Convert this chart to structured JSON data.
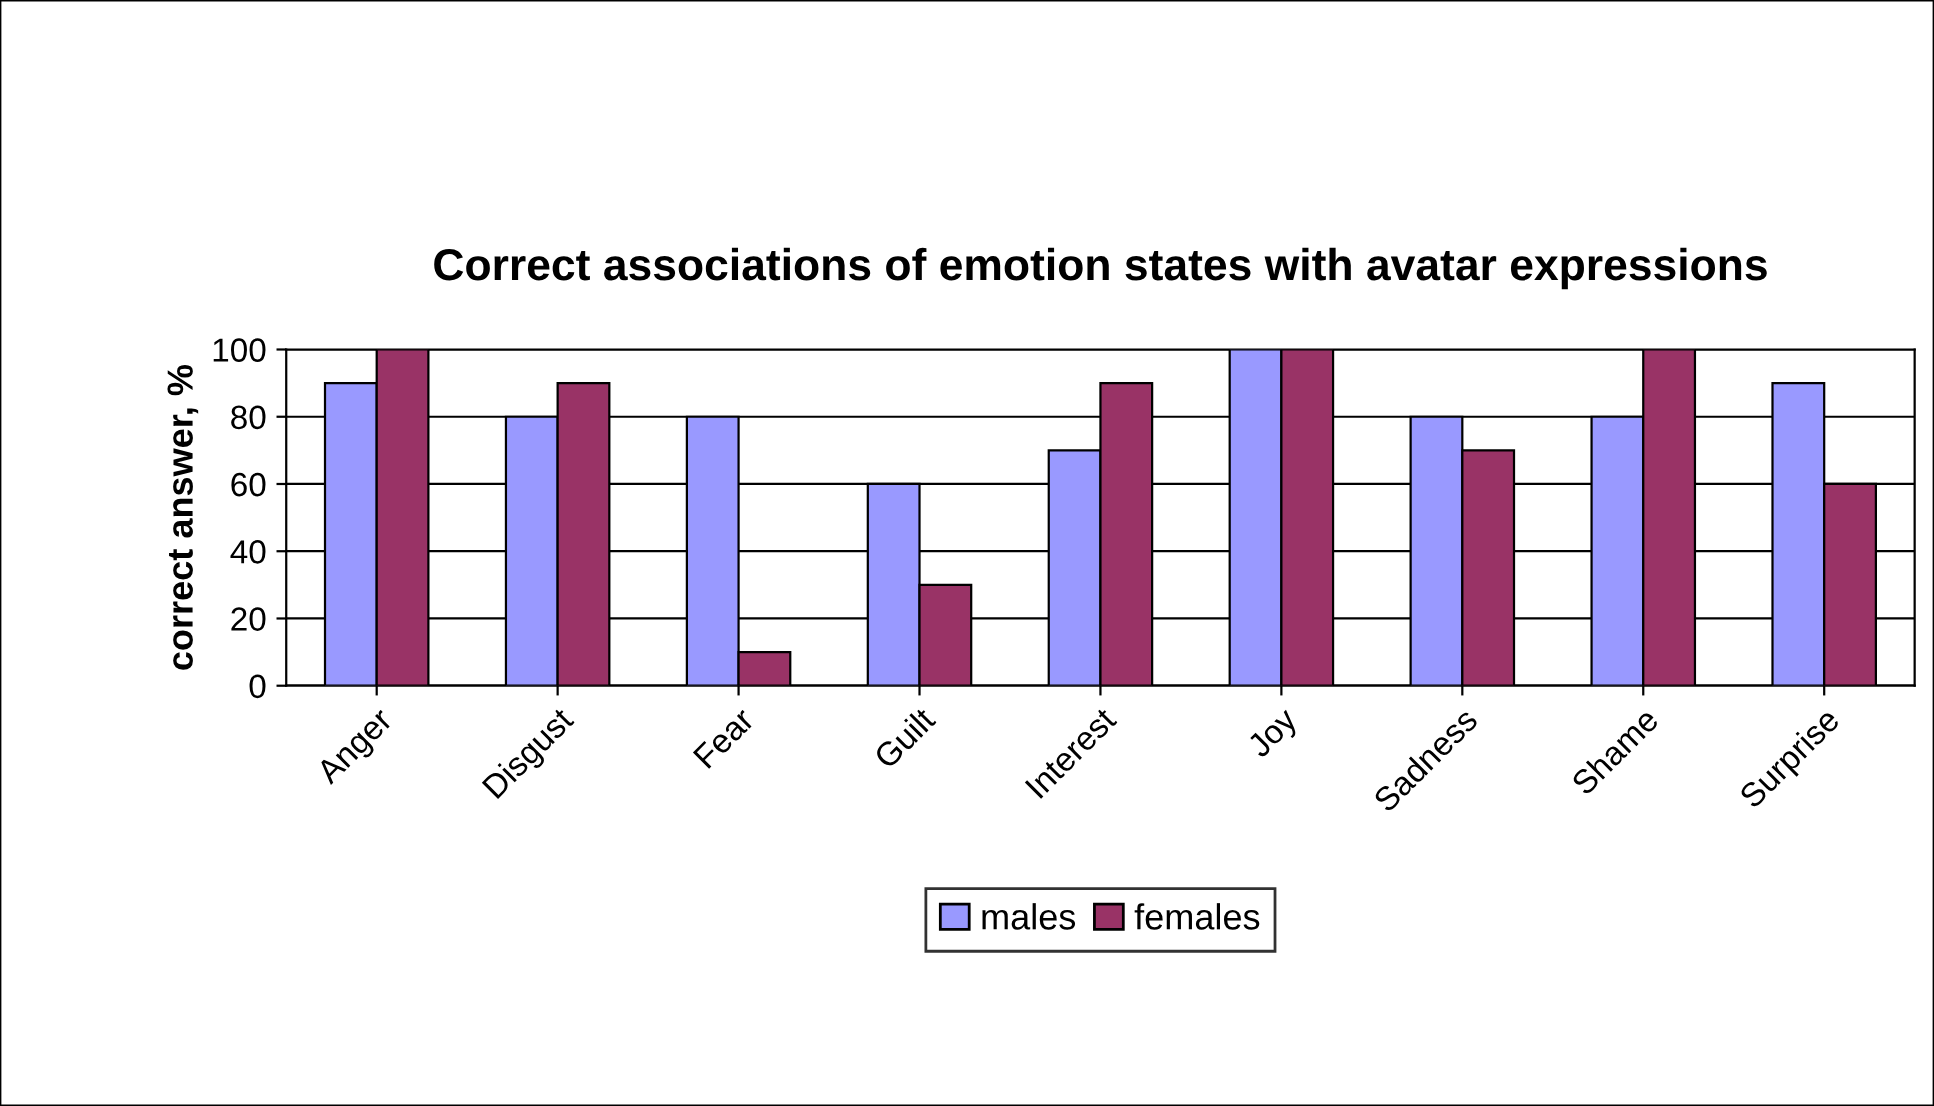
{
  "chart_data": {
    "type": "bar",
    "title": "Correct associations of emotion states with avatar expressions",
    "ylabel": "correct answer, %",
    "categories": [
      "Anger",
      "Disgust",
      "Fear",
      "Guilt",
      "Interest",
      "Joy",
      "Sadness",
      "Shame",
      "Surprise"
    ],
    "series": [
      {
        "name": "males",
        "color": "#9999ff",
        "values": [
          90,
          80,
          80,
          60,
          70,
          100,
          80,
          80,
          90
        ]
      },
      {
        "name": "females",
        "color": "#993366",
        "values": [
          100,
          90,
          10,
          30,
          90,
          100,
          70,
          100,
          60
        ]
      }
    ],
    "ylim": [
      0,
      100
    ],
    "yticks": [
      0,
      20,
      40,
      60,
      80,
      100
    ],
    "grid": "y",
    "legend": "bottom"
  }
}
